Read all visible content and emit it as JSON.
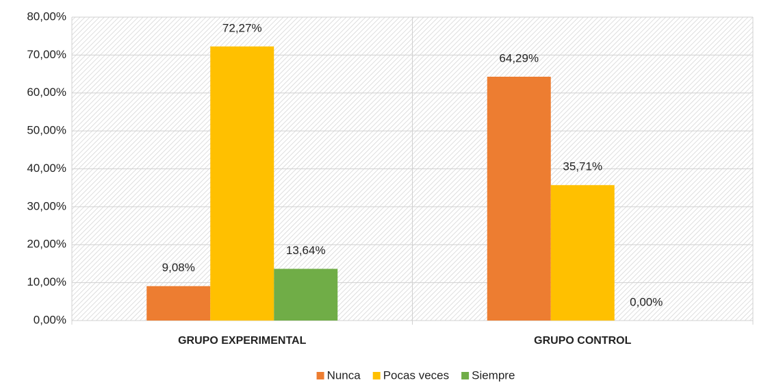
{
  "chart_data": {
    "type": "bar",
    "categories": [
      "GRUPO EXPERIMENTAL",
      "GRUPO CONTROL"
    ],
    "series": [
      {
        "name": "Nunca",
        "color": "#ed7d31",
        "values": [
          9.08,
          64.29
        ],
        "value_labels": [
          "9,08%",
          "64,29%"
        ]
      },
      {
        "name": "Pocas veces",
        "color": "#ffc000",
        "values": [
          72.27,
          35.71
        ],
        "value_labels": [
          "72,27%",
          "35,71%"
        ]
      },
      {
        "name": "Siempre",
        "color": "#70ad47",
        "values": [
          13.64,
          0
        ],
        "value_labels": [
          "13,64%",
          "0,00%"
        ]
      }
    ],
    "ylim": [
      0,
      80
    ],
    "yticks": [
      {
        "value": 0,
        "label": "0,00%"
      },
      {
        "value": 10,
        "label": "10,00%"
      },
      {
        "value": 20,
        "label": "20,00%"
      },
      {
        "value": 30,
        "label": "30,00%"
      },
      {
        "value": 40,
        "label": "40,00%"
      },
      {
        "value": 50,
        "label": "50,00%"
      },
      {
        "value": 60,
        "label": "60,00%"
      },
      {
        "value": 70,
        "label": "70,00%"
      },
      {
        "value": 80,
        "label": "80,00%"
      }
    ],
    "grid": true,
    "legend": "bottom"
  }
}
